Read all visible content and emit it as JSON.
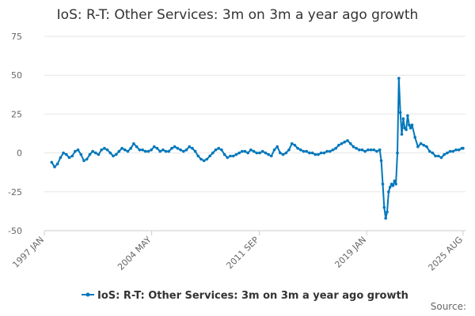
{
  "chart_data": {
    "type": "line",
    "title": "IoS: R-T: Other Services: 3m on 3m a year ago growth",
    "xlabel": "",
    "ylabel": "",
    "ylim": [
      -50,
      75
    ],
    "yticks": [
      75,
      50,
      25,
      0,
      -25,
      -50
    ],
    "xlim": [
      1997.0,
      2025.75
    ],
    "xticks": [
      {
        "label": "1997 JAN",
        "x": 1997.0
      },
      {
        "label": "2004 MAY",
        "x": 2004.33
      },
      {
        "label": "2011 SEP",
        "x": 2011.67
      },
      {
        "label": "2019 JAN",
        "x": 2019.0
      },
      {
        "label": "2025 AUG",
        "x": 2025.58
      }
    ],
    "series": [
      {
        "name": "IoS: R-T: Other Services: 3m on 3m a year ago growth",
        "color": "#0077bb",
        "points": [
          [
            1997.5,
            -6
          ],
          [
            1997.7,
            -9
          ],
          [
            1997.9,
            -7
          ],
          [
            1998.1,
            -3
          ],
          [
            1998.3,
            0
          ],
          [
            1998.5,
            -1
          ],
          [
            1998.7,
            -3
          ],
          [
            1998.9,
            -2
          ],
          [
            1999.1,
            1
          ],
          [
            1999.3,
            2
          ],
          [
            1999.5,
            -1
          ],
          [
            1999.7,
            -5
          ],
          [
            1999.9,
            -4
          ],
          [
            2000.1,
            -1
          ],
          [
            2000.3,
            1
          ],
          [
            2000.5,
            0
          ],
          [
            2000.7,
            -1
          ],
          [
            2000.9,
            2
          ],
          [
            2001.1,
            3
          ],
          [
            2001.3,
            2
          ],
          [
            2001.5,
            0
          ],
          [
            2001.7,
            -2
          ],
          [
            2001.9,
            -1
          ],
          [
            2002.1,
            1
          ],
          [
            2002.3,
            3
          ],
          [
            2002.5,
            2
          ],
          [
            2002.7,
            1
          ],
          [
            2002.9,
            3
          ],
          [
            2003.1,
            6
          ],
          [
            2003.3,
            4
          ],
          [
            2003.5,
            2
          ],
          [
            2003.7,
            2
          ],
          [
            2003.9,
            1
          ],
          [
            2004.1,
            1
          ],
          [
            2004.3,
            2
          ],
          [
            2004.5,
            4
          ],
          [
            2004.7,
            3
          ],
          [
            2004.9,
            1
          ],
          [
            2005.1,
            2
          ],
          [
            2005.3,
            1
          ],
          [
            2005.5,
            1
          ],
          [
            2005.7,
            3
          ],
          [
            2005.9,
            4
          ],
          [
            2006.1,
            3
          ],
          [
            2006.3,
            2
          ],
          [
            2006.5,
            1
          ],
          [
            2006.7,
            2
          ],
          [
            2006.9,
            4
          ],
          [
            2007.1,
            3
          ],
          [
            2007.3,
            1
          ],
          [
            2007.5,
            -2
          ],
          [
            2007.7,
            -4
          ],
          [
            2007.9,
            -5
          ],
          [
            2008.1,
            -4
          ],
          [
            2008.3,
            -2
          ],
          [
            2008.5,
            0
          ],
          [
            2008.7,
            2
          ],
          [
            2008.9,
            3
          ],
          [
            2009.1,
            2
          ],
          [
            2009.3,
            -1
          ],
          [
            2009.5,
            -3
          ],
          [
            2009.7,
            -2
          ],
          [
            2009.9,
            -2
          ],
          [
            2010.1,
            -1
          ],
          [
            2010.3,
            0
          ],
          [
            2010.5,
            1
          ],
          [
            2010.7,
            1
          ],
          [
            2010.9,
            0
          ],
          [
            2011.1,
            2
          ],
          [
            2011.3,
            1
          ],
          [
            2011.5,
            0
          ],
          [
            2011.7,
            0
          ],
          [
            2011.9,
            1
          ],
          [
            2012.1,
            0
          ],
          [
            2012.3,
            -1
          ],
          [
            2012.5,
            -2
          ],
          [
            2012.7,
            2
          ],
          [
            2012.9,
            4
          ],
          [
            2013.1,
            0
          ],
          [
            2013.3,
            -1
          ],
          [
            2013.5,
            0
          ],
          [
            2013.7,
            2
          ],
          [
            2013.9,
            6
          ],
          [
            2014.1,
            5
          ],
          [
            2014.3,
            3
          ],
          [
            2014.5,
            2
          ],
          [
            2014.7,
            1
          ],
          [
            2014.9,
            1
          ],
          [
            2015.1,
            0
          ],
          [
            2015.3,
            0
          ],
          [
            2015.5,
            -1
          ],
          [
            2015.7,
            -1
          ],
          [
            2015.9,
            0
          ],
          [
            2016.1,
            0
          ],
          [
            2016.3,
            1
          ],
          [
            2016.5,
            1
          ],
          [
            2016.7,
            2
          ],
          [
            2016.9,
            3
          ],
          [
            2017.1,
            5
          ],
          [
            2017.3,
            6
          ],
          [
            2017.5,
            7
          ],
          [
            2017.7,
            8
          ],
          [
            2017.9,
            6
          ],
          [
            2018.1,
            4
          ],
          [
            2018.3,
            3
          ],
          [
            2018.5,
            2
          ],
          [
            2018.7,
            2
          ],
          [
            2018.9,
            1
          ],
          [
            2019.1,
            2
          ],
          [
            2019.3,
            2
          ],
          [
            2019.5,
            2
          ],
          [
            2019.7,
            1
          ],
          [
            2019.9,
            2
          ],
          [
            2020.0,
            -5
          ],
          [
            2020.1,
            -20
          ],
          [
            2020.2,
            -35
          ],
          [
            2020.3,
            -42
          ],
          [
            2020.4,
            -38
          ],
          [
            2020.5,
            -25
          ],
          [
            2020.6,
            -22
          ],
          [
            2020.7,
            -20
          ],
          [
            2020.8,
            -21
          ],
          [
            2020.9,
            -18
          ],
          [
            2021.0,
            -20
          ],
          [
            2021.1,
            0
          ],
          [
            2021.2,
            48
          ],
          [
            2021.3,
            26
          ],
          [
            2021.4,
            12
          ],
          [
            2021.5,
            22
          ],
          [
            2021.6,
            16
          ],
          [
            2021.7,
            15
          ],
          [
            2021.8,
            24
          ],
          [
            2021.9,
            18
          ],
          [
            2022.0,
            16
          ],
          [
            2022.1,
            18
          ],
          [
            2022.3,
            10
          ],
          [
            2022.5,
            4
          ],
          [
            2022.7,
            6
          ],
          [
            2022.9,
            5
          ],
          [
            2023.1,
            4
          ],
          [
            2023.3,
            1
          ],
          [
            2023.5,
            0
          ],
          [
            2023.7,
            -2
          ],
          [
            2023.9,
            -2
          ],
          [
            2024.1,
            -3
          ],
          [
            2024.3,
            -1
          ],
          [
            2024.5,
            0
          ],
          [
            2024.7,
            1
          ],
          [
            2024.9,
            1
          ],
          [
            2025.1,
            2
          ],
          [
            2025.3,
            2
          ],
          [
            2025.5,
            3
          ],
          [
            2025.58,
            3
          ]
        ]
      }
    ],
    "legend": {
      "position": "bottom"
    },
    "source_label": "Source:"
  }
}
